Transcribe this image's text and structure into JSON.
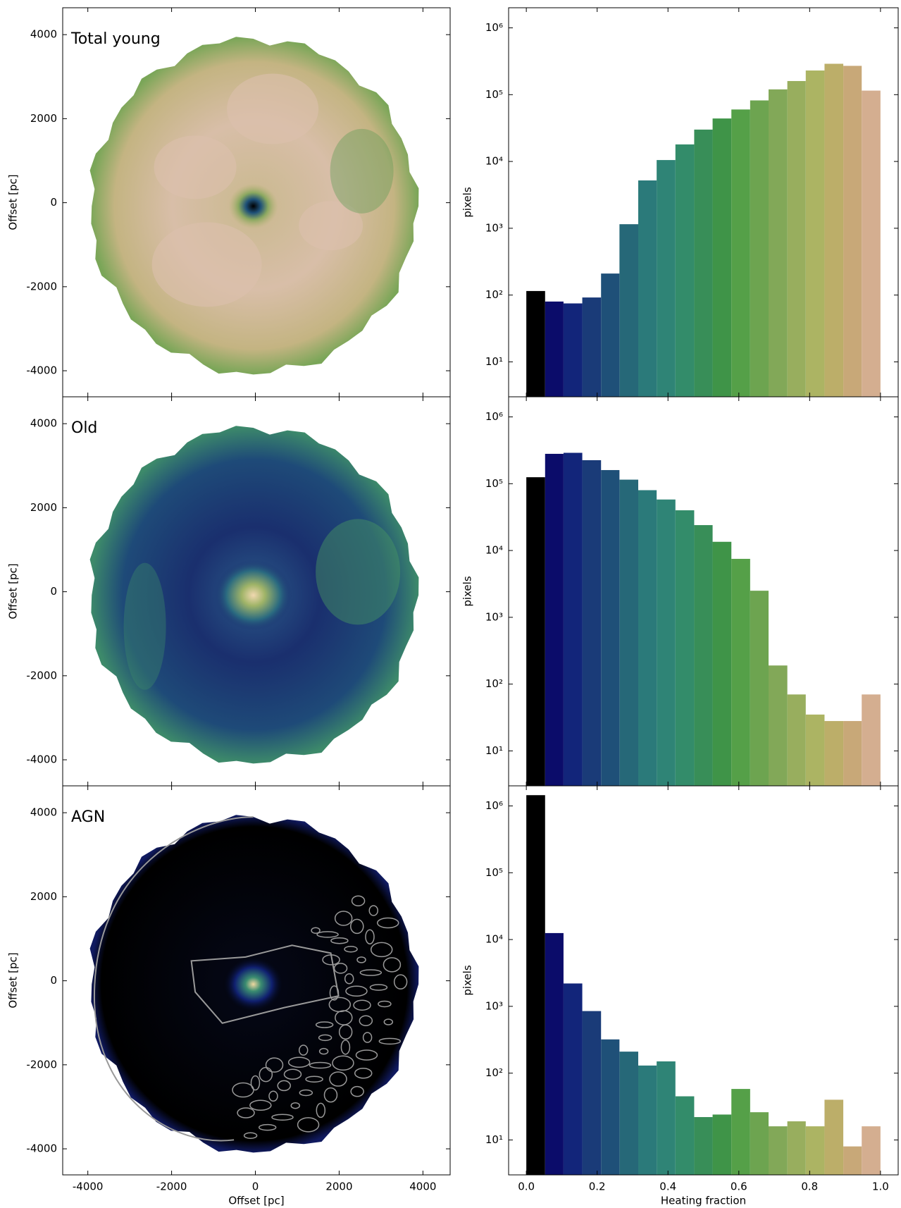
{
  "chart_data": [
    {
      "type": "image",
      "title": "Total young",
      "xlim": [
        -4600,
        4650
      ],
      "ylim": [
        -4620,
        4640
      ],
      "yticks": [
        4000,
        2000,
        0,
        -2000,
        -4000
      ],
      "ylabel": "Offset [pc]"
    },
    {
      "type": "histogram",
      "bins": [
        0,
        0.053,
        0.105,
        0.158,
        0.211,
        0.263,
        0.316,
        0.368,
        0.421,
        0.474,
        0.526,
        0.579,
        0.632,
        0.684,
        0.737,
        0.789,
        0.842,
        0.895,
        0.947,
        1
      ],
      "values": [
        115,
        80,
        75,
        92,
        210,
        1150,
        5200,
        10500,
        18000,
        30000,
        44000,
        60000,
        82000,
        120000,
        160000,
        230000,
        290000,
        270000,
        115000
      ],
      "colors": [
        "#000000",
        "#0b0c6a",
        "#12257a",
        "#1a3b78",
        "#1f5078",
        "#266878",
        "#2b7a7a",
        "#2f8476",
        "#338c6a",
        "#388e58",
        "#3f9448",
        "#55a048",
        "#6da450",
        "#82a858",
        "#98ae5e",
        "#acb463",
        "#bcae69",
        "#c8a878",
        "#d4ae90"
      ],
      "xlim": [
        -0.05,
        1.05
      ],
      "ylim": [
        3,
        2000000
      ],
      "yscale": "log",
      "yticks": [
        {
          "value": 10,
          "label": "10¹"
        },
        {
          "value": 100,
          "label": "10²"
        },
        {
          "value": 1000,
          "label": "10³"
        },
        {
          "value": 10000,
          "label": "10⁴"
        },
        {
          "value": 100000,
          "label": "10⁵"
        },
        {
          "value": 1000000,
          "label": "10⁶"
        }
      ],
      "ylabel": "pixels"
    },
    {
      "type": "image",
      "title": "Old",
      "xlim": [
        -4600,
        4650
      ],
      "ylim": [
        -4620,
        4640
      ],
      "yticks": [
        4000,
        2000,
        0,
        -2000,
        -4000
      ],
      "ylabel": "Offset [pc]"
    },
    {
      "type": "histogram",
      "bins": [
        0,
        0.053,
        0.105,
        0.158,
        0.211,
        0.263,
        0.316,
        0.368,
        0.421,
        0.474,
        0.526,
        0.579,
        0.632,
        0.684,
        0.737,
        0.789,
        0.842,
        0.895,
        0.947,
        1
      ],
      "values": [
        125000,
        280000,
        290000,
        225000,
        160000,
        115000,
        80000,
        58000,
        40000,
        24000,
        13500,
        7500,
        2500,
        190,
        70,
        35,
        28,
        28,
        70
      ],
      "colors": [
        "#000000",
        "#0b0c6a",
        "#12257a",
        "#1a3b78",
        "#1f5078",
        "#266878",
        "#2b7a7a",
        "#2f8476",
        "#338c6a",
        "#388e58",
        "#3f9448",
        "#55a048",
        "#6da450",
        "#82a858",
        "#98ae5e",
        "#acb463",
        "#bcae69",
        "#c8a878",
        "#d4ae90"
      ],
      "xlim": [
        -0.05,
        1.05
      ],
      "ylim": [
        3,
        2000000
      ],
      "yscale": "log",
      "yticks": [
        {
          "value": 10,
          "label": "10¹"
        },
        {
          "value": 100,
          "label": "10²"
        },
        {
          "value": 1000,
          "label": "10³"
        },
        {
          "value": 10000,
          "label": "10⁴"
        },
        {
          "value": 100000,
          "label": "10⁵"
        },
        {
          "value": 1000000,
          "label": "10⁶"
        }
      ],
      "ylabel": "pixels"
    },
    {
      "type": "image",
      "title": "AGN",
      "xlim": [
        -4600,
        4650
      ],
      "ylim": [
        -4620,
        4640
      ],
      "yticks": [
        4000,
        2000,
        0,
        -2000,
        -4000
      ],
      "ylabel": "Offset [pc]",
      "xticks": [
        -4000,
        -2000,
        0,
        2000,
        4000
      ],
      "xlabel": "Offset [pc]"
    },
    {
      "type": "histogram",
      "bins": [
        0,
        0.053,
        0.105,
        0.158,
        0.211,
        0.263,
        0.316,
        0.368,
        0.421,
        0.474,
        0.526,
        0.579,
        0.632,
        0.684,
        0.737,
        0.789,
        0.842,
        0.895,
        0.947,
        1
      ],
      "values": [
        1450000,
        12500,
        2200,
        850,
        320,
        210,
        130,
        150,
        45,
        22,
        24,
        58,
        26,
        16,
        19,
        16,
        40,
        8,
        16
      ],
      "colors": [
        "#000000",
        "#0b0c6a",
        "#12257a",
        "#1a3b78",
        "#1f5078",
        "#266878",
        "#2b7a7a",
        "#2f8476",
        "#338c6a",
        "#388e58",
        "#3f9448",
        "#55a048",
        "#6da450",
        "#82a858",
        "#98ae5e",
        "#acb463",
        "#bcae69",
        "#c8a878",
        "#d4ae90"
      ],
      "xlim": [
        -0.05,
        1.05
      ],
      "ylim": [
        3,
        2000000
      ],
      "yscale": "log",
      "yticks": [
        {
          "value": 10,
          "label": "10¹"
        },
        {
          "value": 100,
          "label": "10²"
        },
        {
          "value": 1000,
          "label": "10³"
        },
        {
          "value": 10000,
          "label": "10⁴"
        },
        {
          "value": 100000,
          "label": "10⁵"
        },
        {
          "value": 1000000,
          "label": "10⁶"
        }
      ],
      "ylabel": "pixels",
      "xticks": [
        {
          "value": 0,
          "label": "0.0"
        },
        0.2,
        0.4,
        0.6,
        0.8,
        {
          "value": 1,
          "label": "1.0"
        }
      ],
      "xlabel": "Heating fraction"
    }
  ]
}
